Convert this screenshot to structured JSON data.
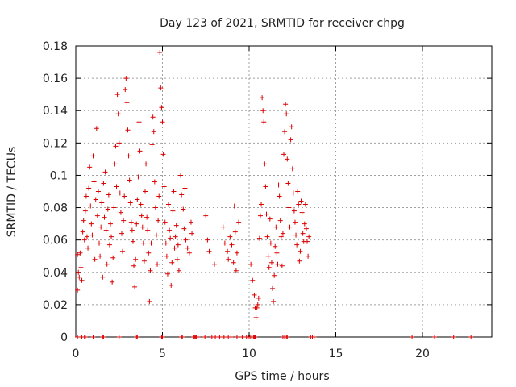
{
  "chart_data": {
    "type": "scatter",
    "title": "Day 123 of 2021, SRMTID for receiver chpg",
    "xlabel": "GPS time / hours",
    "ylabel": "SRMTID / TECUs",
    "xlim": [
      0,
      24
    ],
    "ylim": [
      0,
      0.18
    ],
    "xticks": [
      0,
      5,
      10,
      15,
      20
    ],
    "xtick_labels": [
      "0",
      "5",
      "10",
      "15",
      "20"
    ],
    "yticks": [
      0,
      0.02,
      0.04,
      0.06,
      0.08,
      0.1,
      0.12,
      0.14,
      0.16,
      0.18
    ],
    "ytick_labels": [
      "0",
      "0.02",
      "0.04",
      "0.06",
      "0.08",
      "0.1",
      "0.12",
      "0.14",
      "0.16",
      "0.18"
    ],
    "grid": true,
    "marker": "+",
    "colors": {
      "series": "#dd0000",
      "grid": "#a0a0a0",
      "axis": "#000000"
    },
    "series": [
      {
        "name": "SRMTID",
        "points": [
          [
            0.1,
            0.029
          ],
          [
            0.1,
            0.051
          ],
          [
            0.15,
            0.04
          ],
          [
            0.2,
            0.037
          ],
          [
            0.25,
            0.052
          ],
          [
            0.3,
            0.043
          ],
          [
            0.35,
            0.035
          ],
          [
            0.4,
            0.065
          ],
          [
            0.45,
            0.072
          ],
          [
            0.5,
            0.06
          ],
          [
            0.55,
            0.078
          ],
          [
            0.6,
            0.087
          ],
          [
            0.65,
            0.062
          ],
          [
            0.7,
            0.055
          ],
          [
            0.75,
            0.092
          ],
          [
            0.8,
            0.105
          ],
          [
            0.85,
            0.081
          ],
          [
            0.9,
            0.07
          ],
          [
            0.95,
            0.063
          ],
          [
            1.0,
            0.112
          ],
          [
            1.05,
            0.096
          ],
          [
            1.1,
            0.048
          ],
          [
            1.15,
            0.085
          ],
          [
            1.2,
            0.129
          ],
          [
            1.25,
            0.075
          ],
          [
            1.3,
            0.09
          ],
          [
            1.35,
            0.058
          ],
          [
            1.4,
            0.05
          ],
          [
            1.45,
            0.068
          ],
          [
            1.5,
            0.083
          ],
          [
            1.55,
            0.037
          ],
          [
            1.6,
            0.095
          ],
          [
            1.65,
            0.074
          ],
          [
            1.7,
            0.102
          ],
          [
            1.75,
            0.066
          ],
          [
            1.8,
            0.045
          ],
          [
            1.85,
            0.079
          ],
          [
            1.9,
            0.088
          ],
          [
            1.95,
            0.057
          ],
          [
            2.0,
            0.07
          ],
          [
            2.05,
            0.062
          ],
          [
            2.1,
            0.034
          ],
          [
            2.15,
            0.049
          ],
          [
            2.2,
            0.08
          ],
          [
            2.25,
            0.107
          ],
          [
            2.3,
            0.118
          ],
          [
            2.35,
            0.093
          ],
          [
            2.4,
            0.15
          ],
          [
            2.45,
            0.138
          ],
          [
            2.5,
            0.12
          ],
          [
            2.55,
            0.089
          ],
          [
            2.6,
            0.077
          ],
          [
            2.65,
            0.064
          ],
          [
            2.7,
            0.053
          ],
          [
            2.75,
            0.072
          ],
          [
            2.8,
            0.087
          ],
          [
            2.85,
            0.153
          ],
          [
            2.9,
            0.16
          ],
          [
            2.95,
            0.145
          ],
          [
            3.0,
            0.128
          ],
          [
            3.05,
            0.112
          ],
          [
            3.1,
            0.097
          ],
          [
            3.15,
            0.083
          ],
          [
            3.2,
            0.071
          ],
          [
            3.25,
            0.066
          ],
          [
            3.3,
            0.059
          ],
          [
            3.35,
            0.044
          ],
          [
            3.4,
            0.031
          ],
          [
            3.45,
            0.048
          ],
          [
            3.5,
            0.07
          ],
          [
            3.55,
            0.085
          ],
          [
            3.6,
            0.099
          ],
          [
            3.65,
            0.133
          ],
          [
            3.7,
            0.115
          ],
          [
            3.75,
            0.082
          ],
          [
            3.8,
            0.075
          ],
          [
            3.85,
            0.068
          ],
          [
            3.9,
            0.058
          ],
          [
            3.95,
            0.047
          ],
          [
            4.0,
            0.09
          ],
          [
            4.05,
            0.107
          ],
          [
            4.1,
            0.074
          ],
          [
            4.15,
            0.066
          ],
          [
            4.2,
            0.052
          ],
          [
            4.25,
            0.022
          ],
          [
            4.3,
            0.041
          ],
          [
            4.35,
            0.058
          ],
          [
            4.4,
            0.119
          ],
          [
            4.45,
            0.136
          ],
          [
            4.5,
            0.127
          ],
          [
            4.55,
            0.096
          ],
          [
            4.6,
            0.08
          ],
          [
            4.65,
            0.063
          ],
          [
            4.7,
            0.045
          ],
          [
            4.75,
            0.072
          ],
          [
            4.8,
            0.087
          ],
          [
            4.85,
            0.176
          ],
          [
            4.9,
            0.154
          ],
          [
            4.95,
            0.142
          ],
          [
            5.0,
            0.133
          ],
          [
            5.05,
            0.113
          ],
          [
            5.1,
            0.093
          ],
          [
            5.15,
            0.071
          ],
          [
            5.2,
            0.058
          ],
          [
            5.25,
            0.05
          ],
          [
            5.3,
            0.039
          ],
          [
            5.35,
            0.082
          ],
          [
            5.4,
            0.066
          ],
          [
            5.45,
            0.061
          ],
          [
            5.5,
            0.032
          ],
          [
            5.55,
            0.046
          ],
          [
            5.6,
            0.078
          ],
          [
            5.65,
            0.09
          ],
          [
            5.7,
            0.055
          ],
          [
            5.75,
            0.062
          ],
          [
            5.8,
            0.069
          ],
          [
            5.85,
            0.048
          ],
          [
            5.9,
            0.057
          ],
          [
            5.95,
            0.041
          ],
          [
            6.05,
            0.1
          ],
          [
            6.1,
            0.088
          ],
          [
            6.2,
            0.079
          ],
          [
            6.25,
            0.067
          ],
          [
            6.3,
            0.092
          ],
          [
            6.35,
            0.06
          ],
          [
            6.45,
            0.055
          ],
          [
            6.55,
            0.052
          ],
          [
            6.65,
            0.071
          ],
          [
            6.7,
            0.064
          ],
          [
            7.5,
            0.075
          ],
          [
            7.6,
            0.06
          ],
          [
            7.7,
            0.053
          ],
          [
            8.0,
            0.045
          ],
          [
            8.5,
            0.068
          ],
          [
            8.6,
            0.058
          ],
          [
            8.75,
            0.053
          ],
          [
            8.8,
            0.048
          ],
          [
            8.9,
            0.062
          ],
          [
            9.0,
            0.057
          ],
          [
            9.1,
            0.046
          ],
          [
            9.15,
            0.081
          ],
          [
            9.2,
            0.065
          ],
          [
            9.25,
            0.041
          ],
          [
            9.3,
            0.052
          ],
          [
            9.4,
            0.071
          ],
          [
            10.1,
            0.045
          ],
          [
            10.2,
            0.035
          ],
          [
            10.3,
            0.026
          ],
          [
            10.35,
            0.018
          ],
          [
            10.4,
            0.012
          ],
          [
            10.45,
            0.018
          ],
          [
            10.5,
            0.02
          ],
          [
            10.55,
            0.024
          ],
          [
            10.6,
            0.061
          ],
          [
            10.65,
            0.075
          ],
          [
            10.7,
            0.082
          ],
          [
            10.75,
            0.148
          ],
          [
            10.8,
            0.14
          ],
          [
            10.85,
            0.133
          ],
          [
            10.9,
            0.107
          ],
          [
            10.95,
            0.093
          ],
          [
            11.0,
            0.076
          ],
          [
            11.05,
            0.062
          ],
          [
            11.1,
            0.05
          ],
          [
            11.15,
            0.043
          ],
          [
            11.2,
            0.073
          ],
          [
            11.25,
            0.058
          ],
          [
            11.3,
            0.046
          ],
          [
            11.35,
            0.03
          ],
          [
            11.4,
            0.022
          ],
          [
            11.45,
            0.038
          ],
          [
            11.5,
            0.056
          ],
          [
            11.55,
            0.068
          ],
          [
            11.6,
            0.052
          ],
          [
            11.65,
            0.045
          ],
          [
            11.7,
            0.094
          ],
          [
            11.75,
            0.087
          ],
          [
            11.8,
            0.072
          ],
          [
            11.85,
            0.062
          ],
          [
            11.9,
            0.044
          ],
          [
            11.95,
            0.064
          ],
          [
            12.0,
            0.113
          ],
          [
            12.05,
            0.127
          ],
          [
            12.1,
            0.144
          ],
          [
            12.15,
            0.138
          ],
          [
            12.2,
            0.11
          ],
          [
            12.25,
            0.095
          ],
          [
            12.3,
            0.08
          ],
          [
            12.35,
            0.068
          ],
          [
            12.4,
            0.122
          ],
          [
            12.45,
            0.13
          ],
          [
            12.5,
            0.104
          ],
          [
            12.55,
            0.089
          ],
          [
            12.6,
            0.078
          ],
          [
            12.65,
            0.071
          ],
          [
            12.7,
            0.063
          ],
          [
            12.75,
            0.057
          ],
          [
            12.8,
            0.09
          ],
          [
            12.85,
            0.082
          ],
          [
            12.9,
            0.047
          ],
          [
            12.95,
            0.053
          ],
          [
            13.0,
            0.084
          ],
          [
            13.05,
            0.077
          ],
          [
            13.1,
            0.064
          ],
          [
            13.15,
            0.059
          ],
          [
            13.2,
            0.07
          ],
          [
            13.25,
            0.082
          ],
          [
            13.3,
            0.067
          ],
          [
            13.35,
            0.059
          ],
          [
            13.4,
            0.05
          ],
          [
            13.45,
            0.062
          ]
        ],
        "zero_points": [
          0.1,
          0.35,
          0.5,
          0.55,
          1.0,
          1.55,
          1.6,
          2.5,
          3.5,
          3.55,
          4.95,
          5.0,
          6.1,
          6.15,
          6.8,
          6.85,
          6.9,
          6.95,
          7.05,
          7.45,
          7.85,
          8.05,
          8.3,
          8.55,
          8.8,
          8.95,
          9.3,
          9.6,
          9.85,
          9.95,
          10.05,
          10.15,
          10.25,
          10.3,
          10.35,
          11.95,
          12.05,
          12.15,
          12.2,
          13.55,
          13.65,
          13.75,
          19.4,
          20.7,
          21.8,
          22.8
        ]
      }
    ]
  }
}
